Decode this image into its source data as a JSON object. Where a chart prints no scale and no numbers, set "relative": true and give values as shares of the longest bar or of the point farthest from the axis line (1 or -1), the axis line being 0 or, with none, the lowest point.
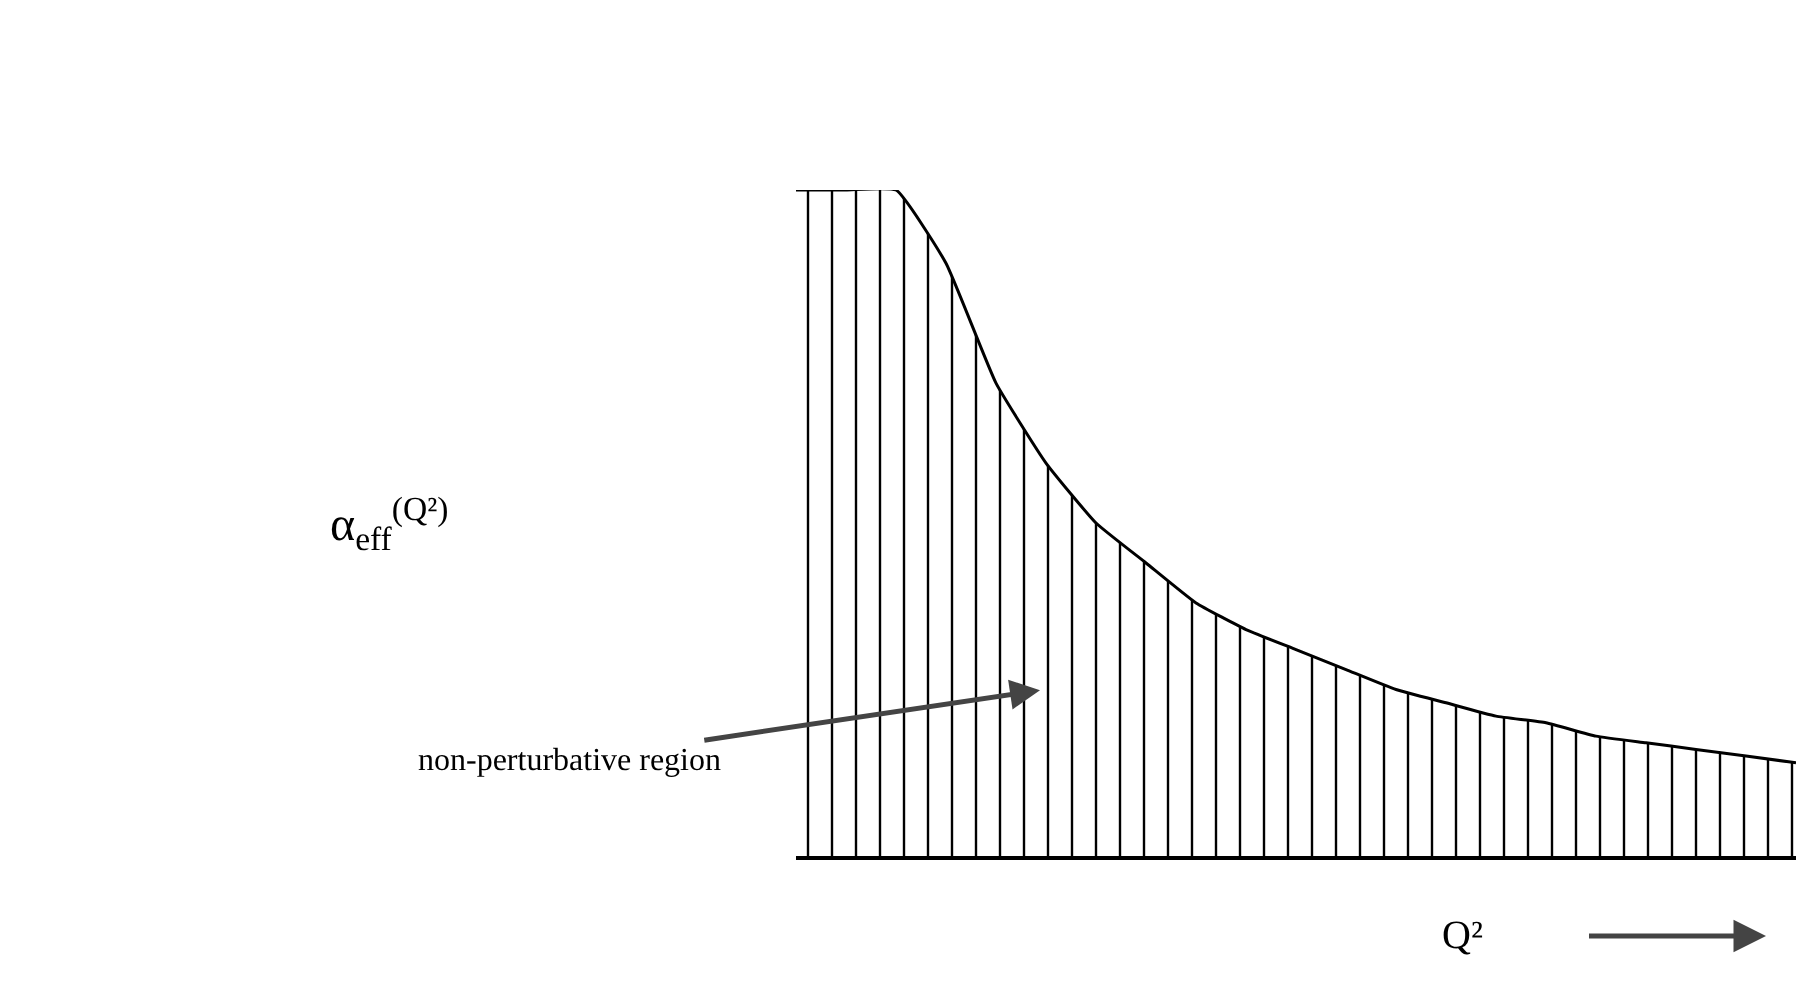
{
  "chart_data": {
    "type": "area",
    "relative": true,
    "xlabel": "Q²",
    "annotations": [
      "non-perturbative region",
      "α$_{eff}$$^{(Q²)}$"
    ],
    "categories": [
      null,
      null,
      null,
      null,
      null,
      null,
      null,
      null,
      null,
      null,
      null,
      null,
      null,
      null,
      null,
      null,
      null,
      null,
      null,
      null,
      null
    ],
    "series": [
      {
        "color": "#000000",
        "values": [
          1,
          1,
          1,
          0.89,
          0.71,
          0.59,
          0.5,
          0.44,
          0.38,
          0.34,
          0.31,
          0.28,
          0.25,
          0.23,
          0.21,
          0.2,
          0.18,
          0.17,
          0.16,
          0.15,
          0.14
        ]
      }
    ],
    "grid": false
  }
}
